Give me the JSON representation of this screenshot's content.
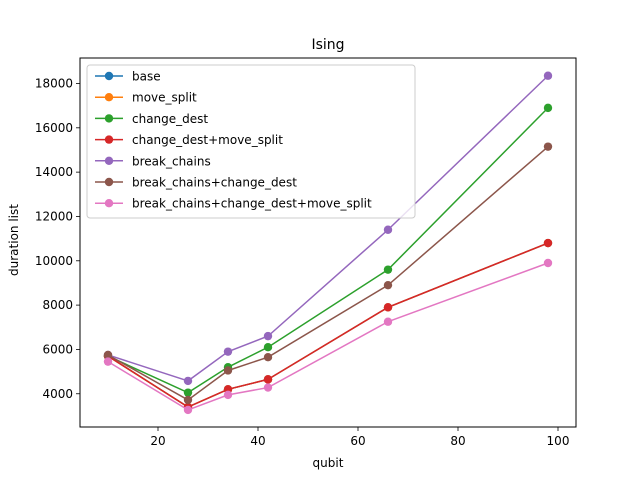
{
  "chart_data": {
    "type": "line",
    "title": "Ising",
    "xlabel": "qubit",
    "ylabel": "duration list",
    "xlim": [
      4.4,
      103.6
    ],
    "ylim": [
      2500,
      19150
    ],
    "xticks": [
      20,
      40,
      60,
      80,
      100
    ],
    "yticks": [
      4000,
      6000,
      8000,
      10000,
      12000,
      14000,
      16000,
      18000
    ],
    "legend_position": "upper-left",
    "grid": false,
    "x": [
      10,
      26,
      34,
      42,
      66,
      98
    ],
    "series": [
      {
        "name": "base",
        "color": "#1f77b4",
        "values": [
          5700,
          3400,
          4200,
          4650,
          7900,
          10800
        ]
      },
      {
        "name": "move_split",
        "color": "#ff7f0e",
        "values": [
          5700,
          3400,
          4200,
          4650,
          7900,
          10800
        ]
      },
      {
        "name": "change_dest",
        "color": "#2ca02c",
        "values": [
          5700,
          4050,
          5200,
          6100,
          9600,
          16900
        ]
      },
      {
        "name": "change_dest+move_split",
        "color": "#d62728",
        "values": [
          5700,
          3400,
          4200,
          4650,
          7900,
          10800
        ]
      },
      {
        "name": "break_chains",
        "color": "#9467bd",
        "values": [
          5750,
          4580,
          5900,
          6600,
          11400,
          18350
        ]
      },
      {
        "name": "break_chains+change_dest",
        "color": "#8c564b",
        "values": [
          5750,
          3720,
          5050,
          5650,
          8900,
          15150
        ]
      },
      {
        "name": "break_chains+change_dest+move_split",
        "color": "#e377c2",
        "values": [
          5450,
          3270,
          3950,
          4280,
          7250,
          9900
        ]
      }
    ]
  }
}
